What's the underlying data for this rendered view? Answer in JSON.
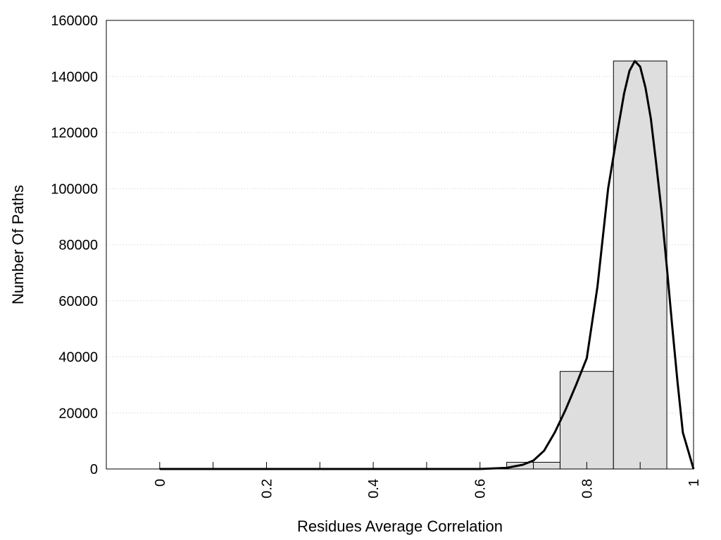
{
  "chart_data": {
    "type": "bar",
    "title": "",
    "xlabel": "Residues Average Correlation",
    "ylabel": "Number Of Paths",
    "xlim": [
      -0.1,
      1.0
    ],
    "ylim": [
      0,
      160000
    ],
    "x_ticks": [
      "0",
      "0.2",
      "0.4",
      "0.6",
      "0.8",
      "1"
    ],
    "x_tick_values": [
      0,
      0.2,
      0.4,
      0.6,
      0.8,
      1.0
    ],
    "y_ticks": [
      "0",
      "20000",
      "40000",
      "60000",
      "80000",
      "100000",
      "120000",
      "140000",
      "160000"
    ],
    "y_tick_values": [
      0,
      20000,
      40000,
      60000,
      80000,
      100000,
      120000,
      140000,
      160000
    ],
    "minor_x_ticks": [
      0.1,
      0.3,
      0.5,
      0.7,
      0.9
    ],
    "grid": "horizontal dotted",
    "bars": [
      {
        "x0": 0.0,
        "x1": 0.1,
        "value": 0
      },
      {
        "x0": 0.1,
        "x1": 0.2,
        "value": 0
      },
      {
        "x0": 0.2,
        "x1": 0.3,
        "value": 0
      },
      {
        "x0": 0.3,
        "x1": 0.4,
        "value": 0
      },
      {
        "x0": 0.4,
        "x1": 0.5,
        "value": 0
      },
      {
        "x0": 0.5,
        "x1": 0.6,
        "value": 0
      },
      {
        "x0": 0.6,
        "x1": 0.65,
        "value": 0
      },
      {
        "x0": 0.65,
        "x1": 0.75,
        "value": 2400
      },
      {
        "x0": 0.75,
        "x1": 0.85,
        "value": 34800
      },
      {
        "x0": 0.85,
        "x1": 0.95,
        "value": 145500
      }
    ],
    "fit_curve": {
      "x": [
        0.0,
        0.2,
        0.4,
        0.6,
        0.65,
        0.68,
        0.7,
        0.72,
        0.74,
        0.76,
        0.78,
        0.8,
        0.82,
        0.84,
        0.86,
        0.87,
        0.88,
        0.89,
        0.9,
        0.91,
        0.92,
        0.93,
        0.94,
        0.95,
        0.96,
        0.97,
        0.98,
        1.0
      ],
      "y": [
        0,
        0,
        0,
        0,
        400,
        1500,
        3000,
        6500,
        13000,
        21000,
        30000,
        39500,
        65000,
        100000,
        123000,
        134000,
        142000,
        145500,
        143500,
        136000,
        125000,
        109000,
        92000,
        72000,
        51000,
        31000,
        13000,
        0
      ]
    },
    "colors": {
      "bar_fill": "#dedede",
      "bar_stroke": "#000000",
      "curve": "#000000",
      "grid": "#c8c8c8"
    }
  }
}
